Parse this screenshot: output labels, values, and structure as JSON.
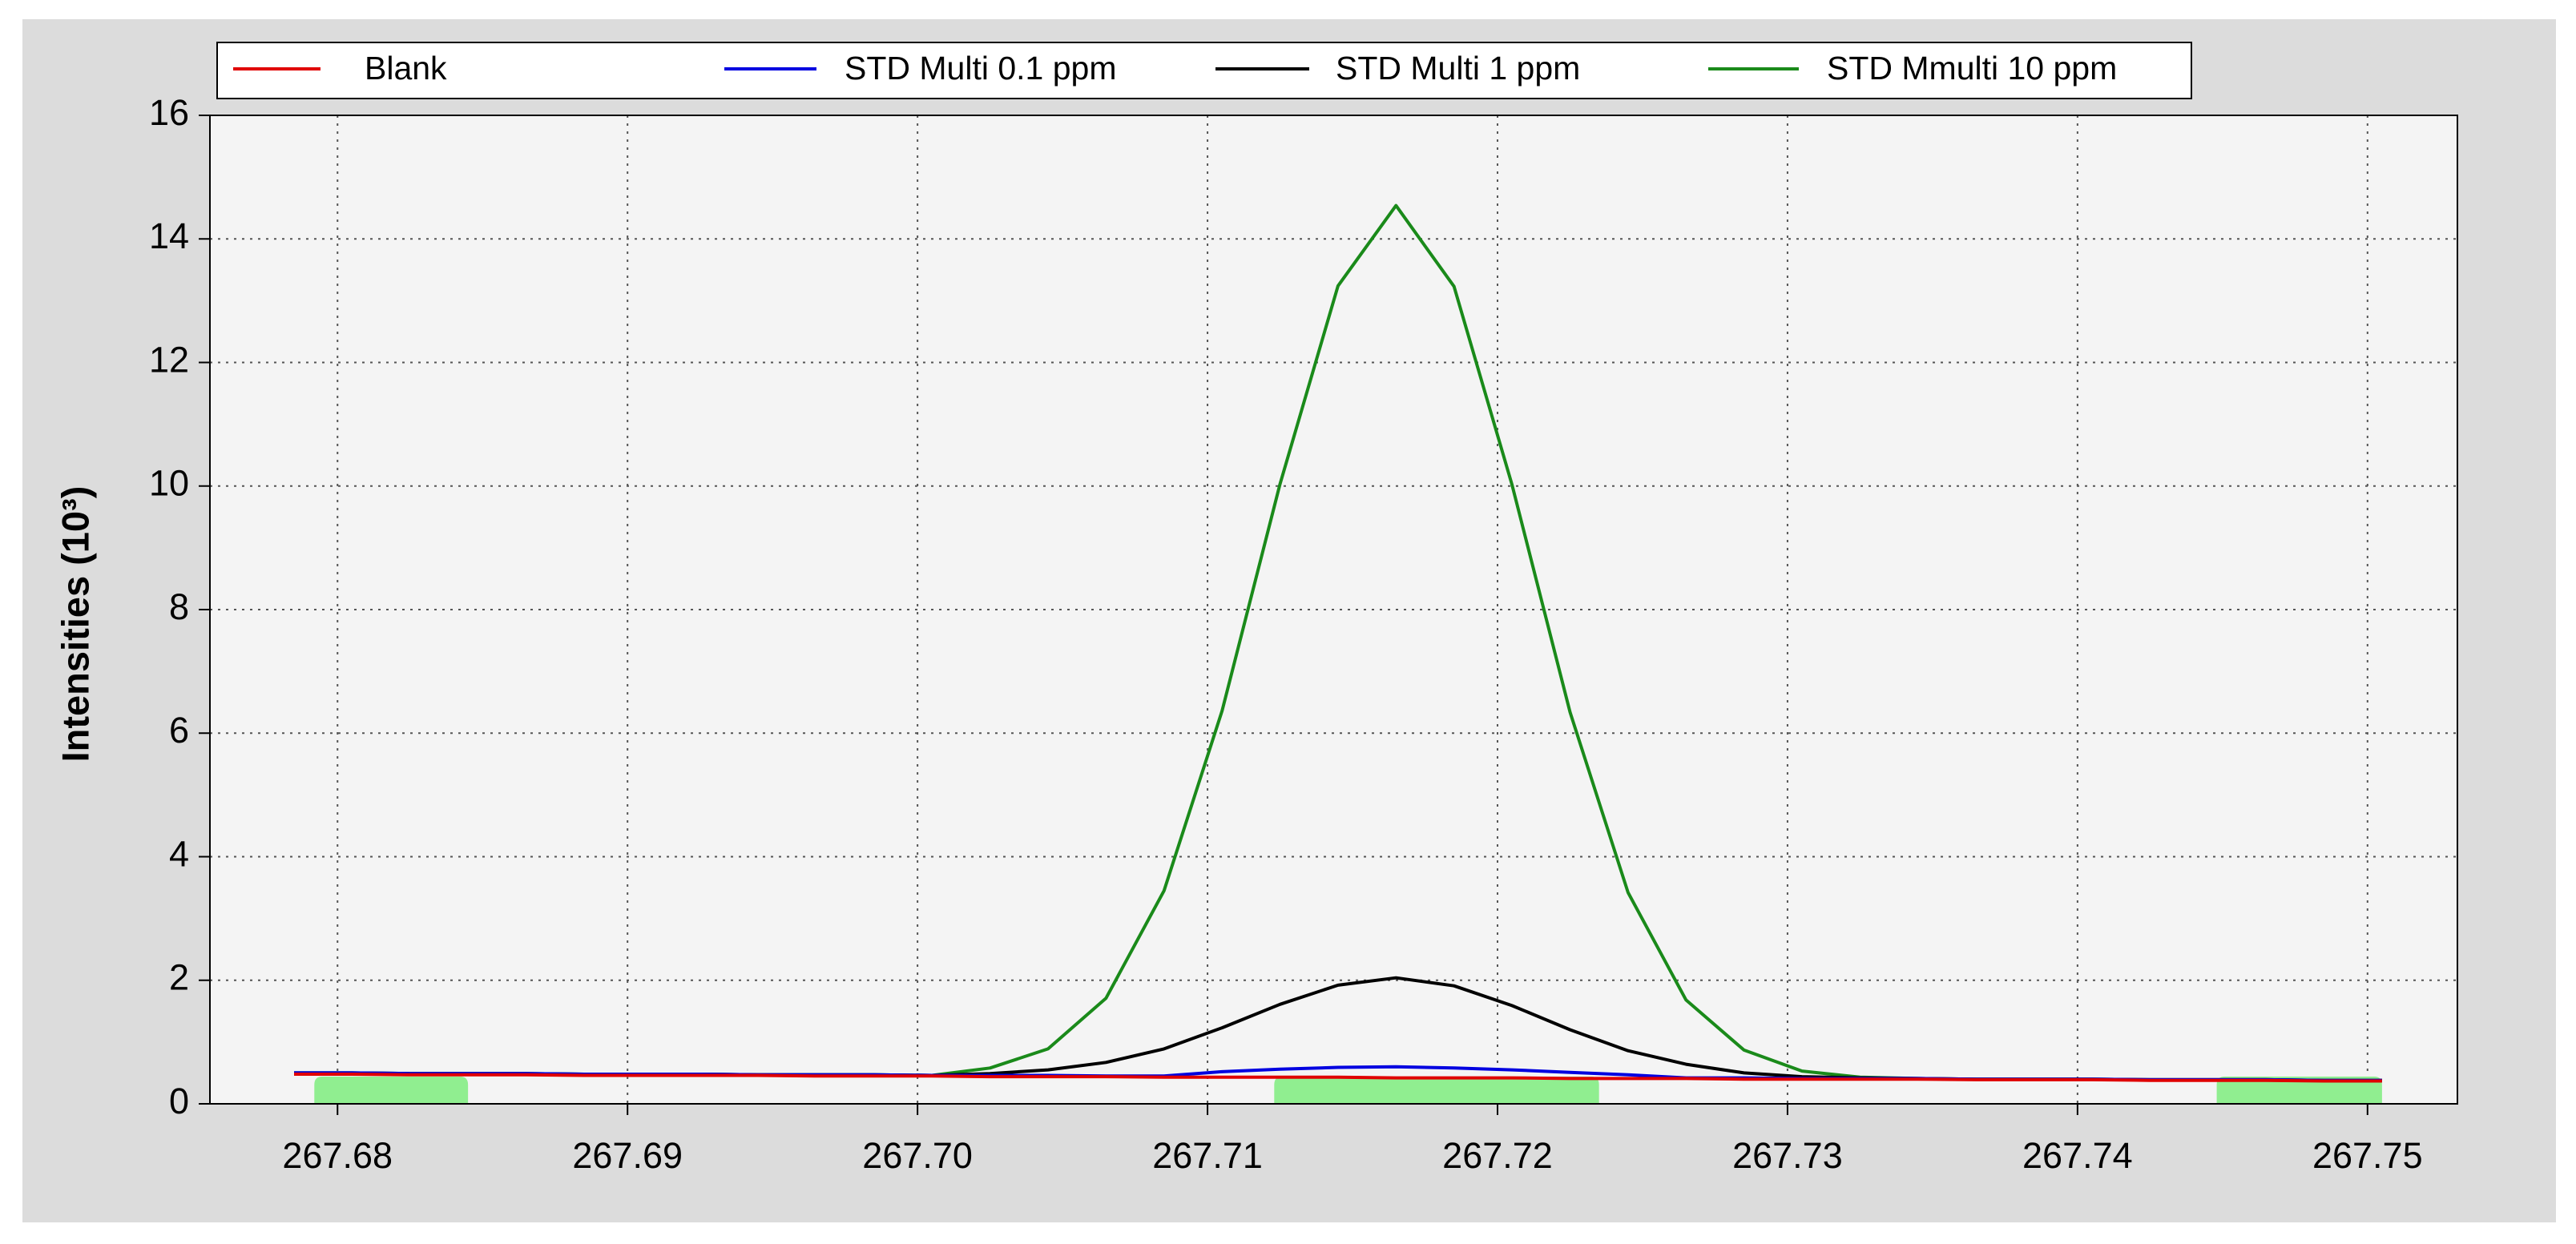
{
  "chart_data": {
    "type": "line",
    "y_label": "Intensities (10³)",
    "x": [
      267.6785,
      267.6805,
      267.6825,
      267.6845,
      267.6865,
      267.6885,
      267.6905,
      267.6925,
      267.6945,
      267.6965,
      267.6985,
      267.7005,
      267.7025,
      267.7045,
      267.7065,
      267.7085,
      267.7105,
      267.7125,
      267.7145,
      267.7165,
      267.7185,
      267.7205,
      267.7225,
      267.7245,
      267.7265,
      267.7285,
      267.7305,
      267.7325,
      267.7345,
      267.7365,
      267.7385,
      267.7405,
      267.7425,
      267.7445,
      267.7465,
      267.7485,
      267.7505
    ],
    "series": [
      {
        "name": "Blank",
        "color": "#e00000",
        "values": [
          0.48,
          0.48,
          0.47,
          0.47,
          0.47,
          0.46,
          0.46,
          0.46,
          0.46,
          0.45,
          0.45,
          0.45,
          0.44,
          0.44,
          0.44,
          0.43,
          0.43,
          0.43,
          0.43,
          0.42,
          0.42,
          0.42,
          0.41,
          0.41,
          0.41,
          0.4,
          0.4,
          0.4,
          0.4,
          0.39,
          0.39,
          0.39,
          0.38,
          0.38,
          0.38,
          0.37,
          0.37
        ]
      },
      {
        "name": "STD Multi 0.1 ppm",
        "color": "#0000e0",
        "values": [
          0.5,
          0.5,
          0.49,
          0.49,
          0.49,
          0.48,
          0.48,
          0.48,
          0.47,
          0.47,
          0.47,
          0.46,
          0.46,
          0.46,
          0.45,
          0.45,
          0.52,
          0.56,
          0.59,
          0.6,
          0.58,
          0.55,
          0.51,
          0.47,
          0.42,
          0.42,
          0.41,
          0.41,
          0.41,
          0.4,
          0.4,
          0.4,
          0.39,
          0.39,
          0.39,
          0.38,
          0.38
        ]
      },
      {
        "name": "STD Multi 1 ppm",
        "color": "#000000",
        "values": [
          0.5,
          0.5,
          0.49,
          0.49,
          0.49,
          0.48,
          0.48,
          0.48,
          0.47,
          0.47,
          0.47,
          0.46,
          0.49,
          0.55,
          0.67,
          0.89,
          1.23,
          1.61,
          1.92,
          2.04,
          1.91,
          1.59,
          1.2,
          0.86,
          0.64,
          0.5,
          0.44,
          0.42,
          0.41,
          0.4,
          0.4,
          0.4,
          0.39,
          0.39,
          0.39,
          0.38,
          0.38
        ]
      },
      {
        "name": "STD Mmulti 10 ppm",
        "color": "#1a8a1a",
        "values": [
          0.5,
          0.5,
          0.49,
          0.49,
          0.49,
          0.48,
          0.48,
          0.48,
          0.47,
          0.47,
          0.47,
          0.46,
          0.58,
          0.89,
          1.71,
          3.45,
          6.36,
          10.03,
          13.24,
          14.54,
          13.23,
          10.02,
          6.34,
          3.42,
          1.68,
          0.87,
          0.53,
          0.43,
          0.41,
          0.4,
          0.4,
          0.4,
          0.39,
          0.39,
          0.39,
          0.38,
          0.38
        ]
      }
    ],
    "highlight_ranges": [
      [
        267.6792,
        267.6845
      ],
      [
        267.7123,
        267.7235
      ],
      [
        267.7448,
        267.7505
      ]
    ],
    "highlight_color": "#90ee90",
    "xlim": [
      267.6756,
      267.7531
    ],
    "ylim": [
      0,
      16
    ],
    "xticks": [
      267.68,
      267.69,
      {
        "value": 267.7,
        "label": "267.70"
      },
      267.71,
      267.72,
      267.73,
      267.74,
      267.75
    ],
    "yticks": [
      0,
      2,
      4,
      6,
      8,
      10,
      12,
      14,
      16
    ],
    "grid": true
  }
}
